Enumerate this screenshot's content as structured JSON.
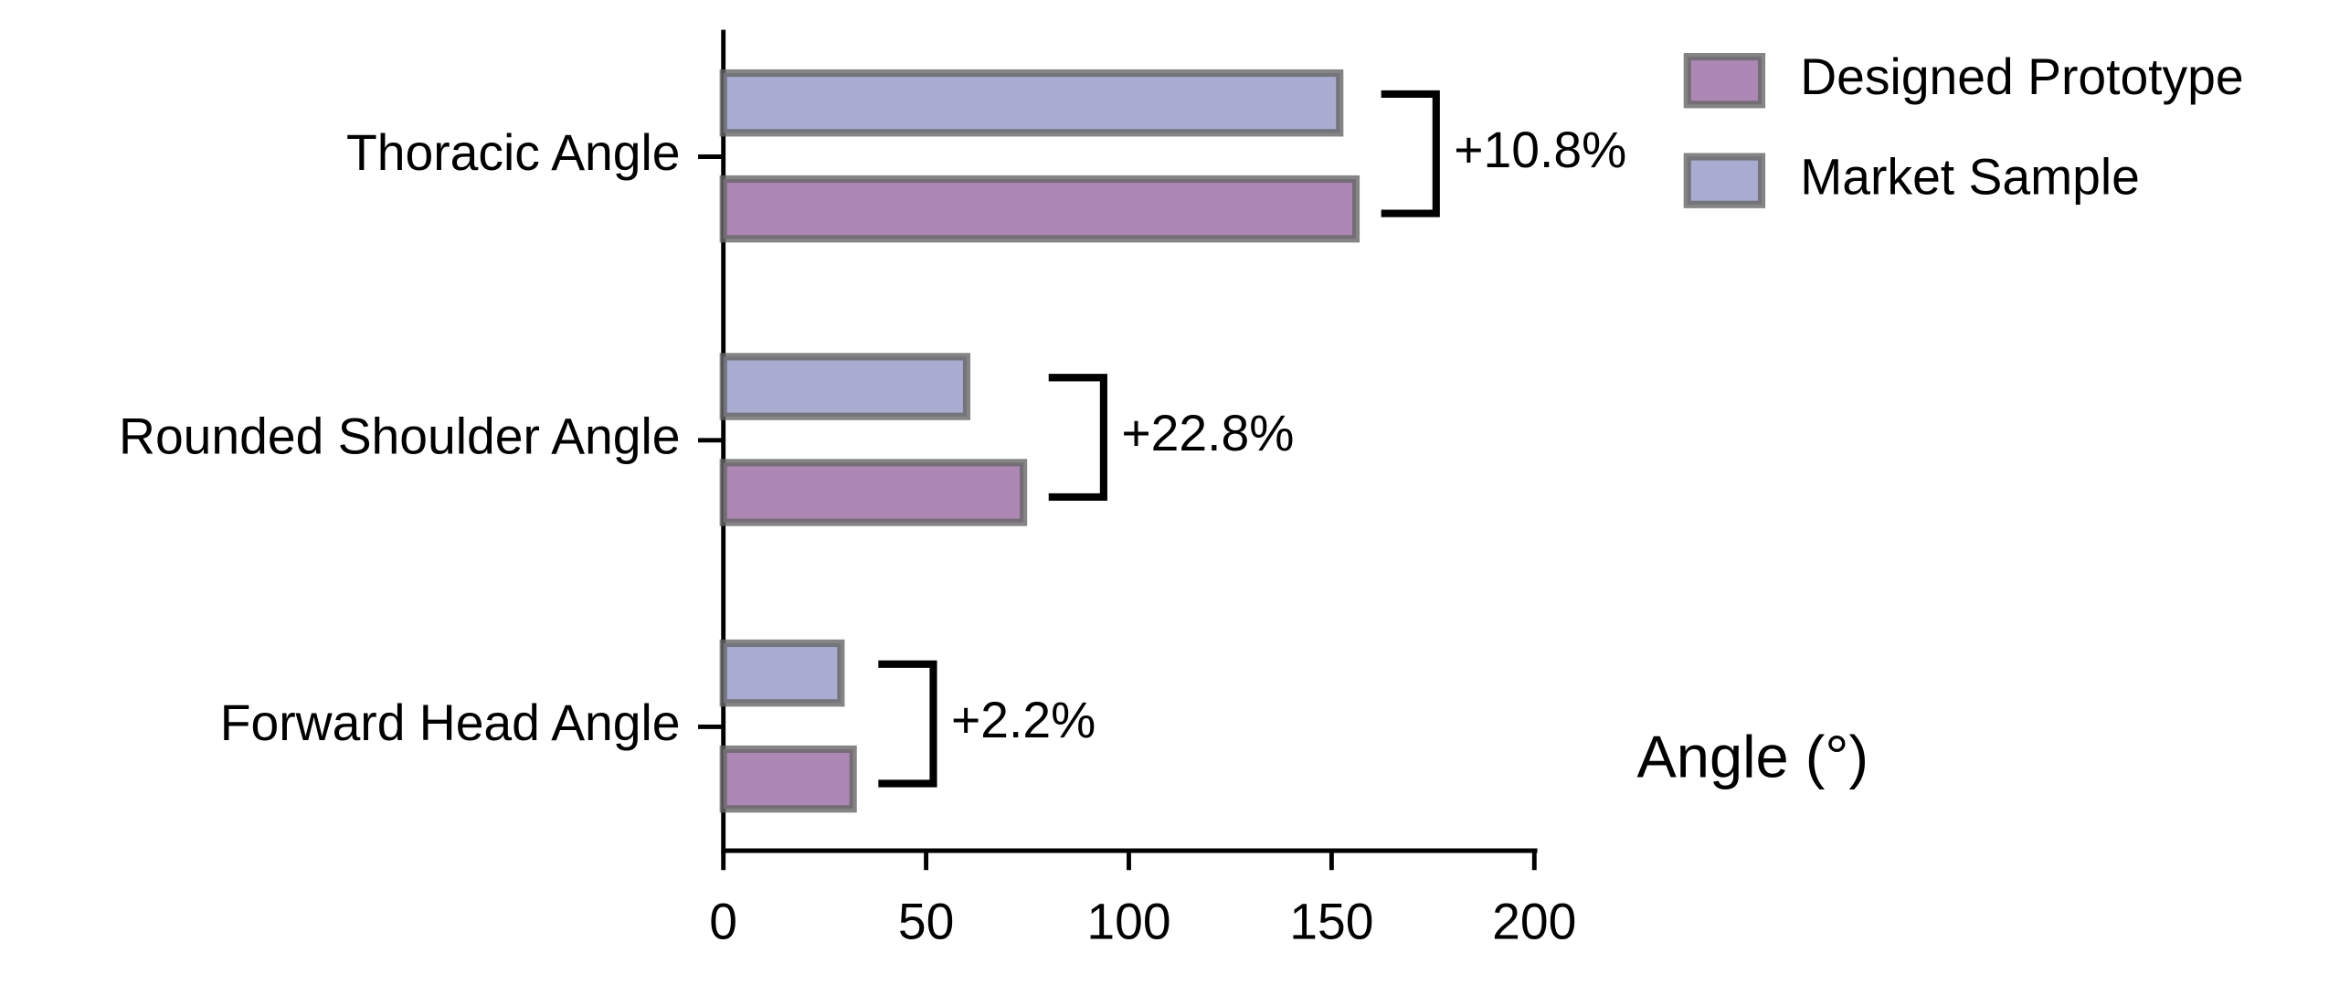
{
  "chart_data": {
    "type": "hbar",
    "categories": [
      "Thoracic Angle",
      "Rounded Shoulder Angle",
      "Forward Head Angle"
    ],
    "series": [
      {
        "name": "Designed Prototype",
        "color": "#ad88b4",
        "values": [
          156,
          74,
          32
        ]
      },
      {
        "name": "Market Sample",
        "color": "#a9acd0",
        "values": [
          152,
          60,
          29
        ]
      }
    ],
    "annotations": [
      "+10.8%",
      "+22.8%",
      "+2.2%"
    ],
    "xlabel": "Angle (°)",
    "xlim": [
      0,
      200
    ],
    "xticks": [
      0,
      50,
      100,
      150,
      200
    ],
    "legend": "top-right"
  }
}
